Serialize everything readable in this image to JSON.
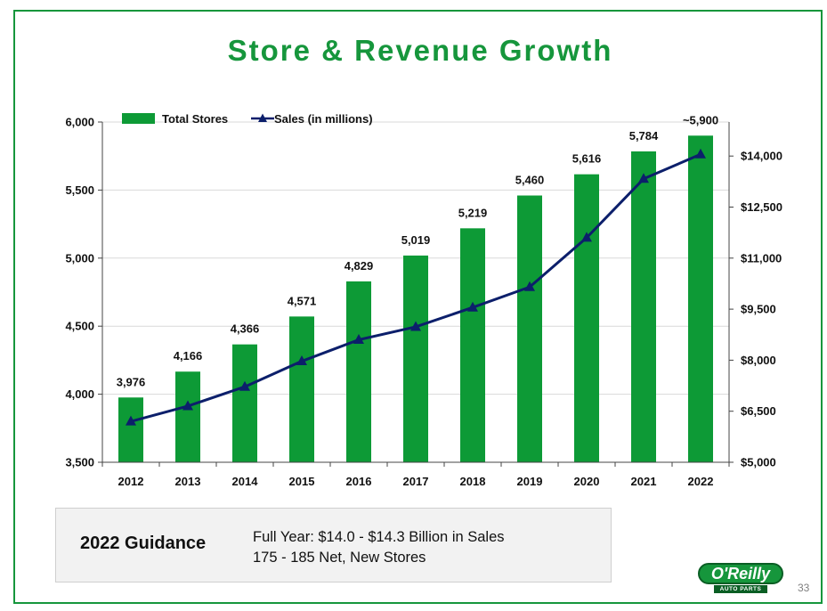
{
  "slide": {
    "title": "Store & Revenue Growth",
    "page_number": "33"
  },
  "guidance": {
    "heading": "2022 Guidance",
    "line1": "Full Year: $14.0 - $14.3 Billion in Sales",
    "line2": "175 - 185 Net, New Stores"
  },
  "logo": {
    "name": "O'Reilly",
    "subtitle": "AUTO PARTS"
  },
  "colors": {
    "brand_green": "#16963c",
    "bar_green": "#0d9a36",
    "line_navy": "#0c1f6b",
    "grid": "#d9d9d9"
  },
  "chart_data": {
    "type": "bar",
    "categories": [
      "2012",
      "2013",
      "2014",
      "2015",
      "2016",
      "2017",
      "2018",
      "2019",
      "2020",
      "2021",
      "2022"
    ],
    "series": [
      {
        "name": "Total Stores",
        "type": "bar",
        "axis": "left",
        "values": [
          3976,
          4166,
          4366,
          4571,
          4829,
          5019,
          5219,
          5460,
          5616,
          5784,
          5900
        ],
        "labels": [
          "3,976",
          "4,166",
          "4,366",
          "4,571",
          "4,829",
          "5,019",
          "5,219",
          "5,460",
          "5,616",
          "5,784",
          "~5,900"
        ]
      },
      {
        "name": "Sales (in millions)",
        "type": "line",
        "axis": "right",
        "marker": "triangle",
        "values": [
          6200,
          6650,
          7220,
          7970,
          8600,
          8980,
          9550,
          10150,
          11600,
          13330,
          14050
        ]
      }
    ],
    "y_left": {
      "min": 3500,
      "max": 6000,
      "ticks": [
        3500,
        4000,
        4500,
        5000,
        5500,
        6000
      ],
      "tick_labels": [
        "3,500",
        "4,000",
        "4,500",
        "5,000",
        "5,500",
        "6,000"
      ]
    },
    "y_right": {
      "min": 5000,
      "max": 15000,
      "ticks": [
        5000,
        6500,
        8000,
        9500,
        11000,
        12500,
        14000
      ],
      "tick_labels": [
        "$5,000",
        "$6,500",
        "$8,000",
        "$9,500",
        "$11,000",
        "$12,500",
        "$14,000"
      ]
    },
    "grid": true,
    "legend": "top-left"
  }
}
